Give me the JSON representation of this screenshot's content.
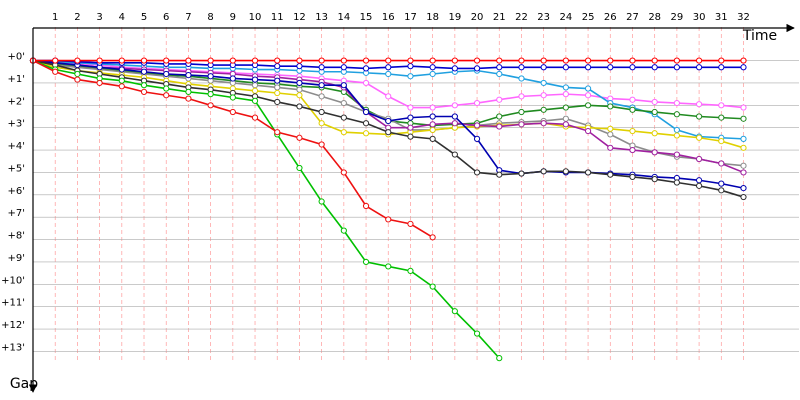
{
  "chart_data": {
    "type": "line",
    "x_label": "Time",
    "y_label": "Gap",
    "xlim": [
      0,
      34.5
    ],
    "ylim": [
      -1.5,
      14.5
    ],
    "y_inverted": true,
    "grid": true,
    "xticks": [
      1,
      2,
      3,
      4,
      5,
      6,
      7,
      8,
      9,
      10,
      11,
      12,
      13,
      14,
      15,
      16,
      17,
      18,
      19,
      20,
      21,
      22,
      23,
      24,
      25,
      26,
      27,
      28,
      29,
      30,
      31,
      32
    ],
    "yticks": [
      {
        "value": 0,
        "label": "+0'"
      },
      {
        "value": 1,
        "label": "+1'"
      },
      {
        "value": 2,
        "label": "+2'"
      },
      {
        "value": 3,
        "label": "+3'"
      },
      {
        "value": 4,
        "label": "+4'"
      },
      {
        "value": 5,
        "label": "+5'"
      },
      {
        "value": 6,
        "label": "+6'"
      },
      {
        "value": 7,
        "label": "+7'"
      },
      {
        "value": 8,
        "label": "+8'"
      },
      {
        "value": 9,
        "label": "+9'"
      },
      {
        "value": 10,
        "label": "+10'"
      },
      {
        "value": 11,
        "label": "+11'"
      },
      {
        "value": 12,
        "label": "+12'"
      },
      {
        "value": 13,
        "label": "+13'"
      }
    ],
    "x": [
      0,
      1,
      2,
      3,
      4,
      5,
      6,
      7,
      8,
      9,
      10,
      11,
      12,
      13,
      14,
      15,
      16,
      17,
      18,
      19,
      20,
      21,
      22,
      23,
      24,
      25,
      26,
      27,
      28,
      29,
      30,
      31,
      32
    ],
    "series": [
      {
        "color": "#ff66ff",
        "values": [
          0,
          0.1,
          0.15,
          0.2,
          0.3,
          0.35,
          0.4,
          0.45,
          0.5,
          0.55,
          0.6,
          0.65,
          0.7,
          0.8,
          0.9,
          1.0,
          1.6,
          2.1,
          2.1,
          2.0,
          1.9,
          1.75,
          1.6,
          1.55,
          1.5,
          1.55,
          1.7,
          1.75,
          1.85,
          1.9,
          1.95,
          2.0,
          2.1
        ]
      },
      {
        "color": "#20a0e0",
        "values": [
          0,
          0.05,
          0.1,
          0.15,
          0.2,
          0.25,
          0.3,
          0.3,
          0.35,
          0.35,
          0.4,
          0.4,
          0.45,
          0.5,
          0.5,
          0.55,
          0.6,
          0.7,
          0.6,
          0.5,
          0.45,
          0.6,
          0.8,
          1.0,
          1.2,
          1.25,
          1.9,
          2.1,
          2.4,
          3.1,
          3.4,
          3.45,
          3.5
        ]
      },
      {
        "color": "#208a20",
        "values": [
          0,
          0.15,
          0.25,
          0.35,
          0.45,
          0.55,
          0.65,
          0.7,
          0.8,
          0.9,
          1.0,
          1.05,
          1.15,
          1.2,
          1.4,
          2.2,
          2.7,
          2.8,
          2.9,
          2.85,
          2.8,
          2.5,
          2.3,
          2.2,
          2.1,
          2.0,
          2.05,
          2.2,
          2.3,
          2.4,
          2.5,
          2.55,
          2.6
        ]
      },
      {
        "color": "#8c8c8c",
        "values": [
          0,
          0.2,
          0.3,
          0.4,
          0.5,
          0.6,
          0.7,
          0.8,
          0.9,
          1.0,
          1.1,
          1.2,
          1.3,
          1.6,
          1.9,
          2.3,
          2.6,
          3.1,
          3.1,
          3.0,
          2.9,
          2.8,
          2.75,
          2.7,
          2.6,
          2.9,
          3.3,
          3.8,
          4.1,
          4.3,
          4.4,
          4.6,
          4.7
        ]
      },
      {
        "color": "#e0d000",
        "values": [
          0,
          0.3,
          0.45,
          0.55,
          0.65,
          0.75,
          0.9,
          1.05,
          1.15,
          1.25,
          1.35,
          1.45,
          1.55,
          2.8,
          3.2,
          3.25,
          3.3,
          3.2,
          3.1,
          3.0,
          2.95,
          2.9,
          2.85,
          2.8,
          2.95,
          3.0,
          3.05,
          3.15,
          3.25,
          3.35,
          3.45,
          3.6,
          3.9
        ]
      },
      {
        "color": "#a020a0",
        "values": [
          0,
          0.1,
          0.2,
          0.3,
          0.35,
          0.4,
          0.45,
          0.5,
          0.55,
          0.6,
          0.7,
          0.75,
          0.85,
          0.95,
          1.2,
          2.3,
          3.0,
          3.0,
          2.85,
          2.8,
          2.9,
          2.95,
          2.85,
          2.8,
          2.85,
          3.15,
          3.9,
          4.0,
          4.1,
          4.2,
          4.4,
          4.6,
          5.0
        ]
      },
      {
        "color": "#0000b0",
        "values": [
          0,
          0.1,
          0.2,
          0.3,
          0.4,
          0.5,
          0.6,
          0.65,
          0.7,
          0.8,
          0.85,
          0.9,
          1.0,
          1.1,
          1.1,
          2.3,
          2.7,
          2.55,
          2.5,
          2.5,
          3.5,
          4.9,
          5.05,
          4.95,
          5.0,
          5.0,
          5.05,
          5.1,
          5.2,
          5.25,
          5.35,
          5.5,
          5.7
        ]
      },
      {
        "color": "#303030",
        "values": [
          0,
          0.2,
          0.45,
          0.6,
          0.75,
          0.9,
          1.05,
          1.2,
          1.3,
          1.45,
          1.6,
          1.85,
          2.05,
          2.3,
          2.55,
          2.8,
          3.2,
          3.4,
          3.5,
          4.2,
          5.0,
          5.1,
          5.05,
          4.95,
          4.95,
          5.0,
          5.1,
          5.2,
          5.3,
          5.45,
          5.6,
          5.8,
          6.1
        ]
      },
      {
        "color": "#00c000",
        "values": [
          0,
          0.4,
          0.6,
          0.8,
          0.9,
          1.1,
          1.25,
          1.4,
          1.5,
          1.65,
          1.8,
          3.3,
          4.8,
          6.3,
          7.6,
          9.0,
          9.2,
          9.4,
          10.1,
          11.2,
          12.2,
          13.3,
          null,
          null,
          null,
          null,
          null,
          null,
          null,
          null,
          null,
          null,
          null
        ]
      },
      {
        "color": "#ee1111",
        "values": [
          0,
          0.5,
          0.85,
          1.0,
          1.15,
          1.4,
          1.55,
          1.7,
          2.0,
          2.3,
          2.55,
          3.2,
          3.45,
          3.75,
          5.0,
          6.5,
          7.1,
          7.3,
          7.9,
          null,
          null,
          null,
          null,
          null,
          null,
          null,
          null,
          null,
          null,
          null,
          null,
          null,
          null
        ]
      },
      {
        "color": "#0000cc",
        "values": [
          0,
          0,
          0.05,
          0.1,
          0.1,
          0.1,
          0.15,
          0.15,
          0.2,
          0.2,
          0.2,
          0.25,
          0.25,
          0.3,
          0.3,
          0.35,
          0.3,
          0.25,
          0.3,
          0.35,
          0.35,
          0.3,
          0.3,
          0.3,
          0.3,
          0.3,
          0.3,
          0.3,
          0.3,
          0.3,
          0.3,
          0.3,
          0.3
        ]
      },
      {
        "color": "#ff0000",
        "values": [
          0,
          0,
          0,
          0,
          0,
          0,
          0,
          0,
          0,
          0,
          0,
          0,
          0,
          0,
          0,
          0,
          0,
          0,
          0,
          0,
          0,
          0,
          0,
          0,
          0,
          0,
          0,
          0,
          0,
          0,
          0,
          0,
          0
        ]
      }
    ]
  }
}
